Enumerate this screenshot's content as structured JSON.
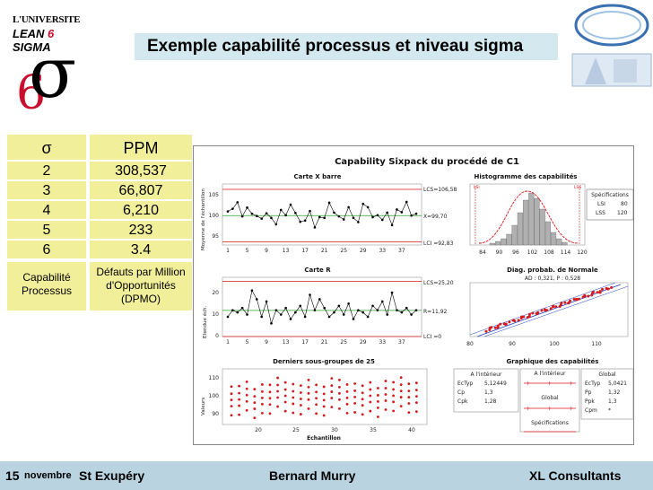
{
  "header": {
    "title": "Exemple capabilité processus et niveau sigma",
    "logo_line1": "L'UNIVERSITE",
    "logo_lean": "LEAN",
    "logo_six": "6",
    "logo_sigma": "SIGMA",
    "logo_big_six": "6",
    "logo_big_sigma": "σ"
  },
  "sigma_table": {
    "head": {
      "sigma": "σ",
      "ppm": "PPM"
    },
    "rows": [
      {
        "sigma": "2",
        "ppm": "308,537"
      },
      {
        "sigma": "3",
        "ppm": "66,807"
      },
      {
        "sigma": "4",
        "ppm": "6,210"
      },
      {
        "sigma": "5",
        "ppm": "233"
      },
      {
        "sigma": "6",
        "ppm": "3.4"
      }
    ],
    "foot": {
      "left": "Capabilité Processus",
      "right": "Défauts par Million d'Opportunités (DPMO)"
    }
  },
  "sixpack": {
    "title": "Capability Sixpack du procédé de C1",
    "xbar": {
      "title": "Carte X barre",
      "ylabel": "Moyenne de l'échantillon",
      "ucl_label": "LCS=106,58",
      "center_label": "X=99,70",
      "lcl_label": "LCI =92,83",
      "yticks": [
        "105",
        "100",
        "95"
      ],
      "xticks": [
        "1",
        "5",
        "9",
        "13",
        "17",
        "21",
        "25",
        "29",
        "33",
        "37"
      ]
    },
    "rchart": {
      "title": "Carte R",
      "ylabel": "Etendue éch.",
      "ucl_label": "LCS=25,20",
      "center_label": "R=11,92",
      "lcl_label": "LCI =0",
      "yticks": [
        "20",
        "10",
        "0"
      ],
      "xticks": [
        "1",
        "5",
        "9",
        "13",
        "17",
        "21",
        "25",
        "29",
        "33",
        "37"
      ]
    },
    "last25": {
      "title": "Derniers sous-groupes de 25",
      "ylabel": "Valeurs",
      "xlabel": "Echantillon",
      "yticks": [
        "110",
        "100",
        "90"
      ],
      "xticks": [
        "20",
        "25",
        "30",
        "35",
        "40"
      ]
    },
    "histogram": {
      "title": "Histogramme des capabilités",
      "lsl": "LSI",
      "usl": "LSS",
      "xticks": [
        "84",
        "90",
        "96",
        "102",
        "108",
        "114",
        "120"
      ],
      "spec_title": "Spécifications",
      "spec_lsi": "LSI",
      "spec_lsi_val": "80",
      "spec_lss": "LSS",
      "spec_lss_val": "120"
    },
    "probplot": {
      "title": "Diag. probab. de Normale",
      "stats": "AD : 0,321, P : 0,528",
      "xticks": [
        "80",
        "90",
        "100",
        "110"
      ]
    },
    "capplot": {
      "title": "Graphique des capabilités",
      "within_title": "A l'intérieur",
      "within": [
        {
          "k": "EcTyp",
          "v": "5,12449"
        },
        {
          "k": "Cp",
          "v": "1,3"
        },
        {
          "k": "Cpk",
          "v": "1,28"
        }
      ],
      "overall_title": "Global",
      "overall": [
        {
          "k": "EcTyp",
          "v": "5,0421"
        },
        {
          "k": "Pp",
          "v": "1,32"
        },
        {
          "k": "Ppk",
          "v": "1,3"
        },
        {
          "k": "Cpm",
          "v": "*"
        }
      ],
      "bar1": "A l'intérieur",
      "bar2": "Global",
      "bar3": "Spécifications"
    }
  },
  "footer": {
    "date_day": "15",
    "date_month": "novembre",
    "place": "St Exupéry",
    "author": "Bernard Murry",
    "company": "XL Consultants"
  },
  "colors": {
    "title_bg": "#d3e9ef",
    "table_bg": "#f2ef9b",
    "footer_bg": "#b9d4e0",
    "red": "#d7191c",
    "green": "#2ca02c"
  },
  "chart_data": [
    {
      "type": "line",
      "title": "Carte X barre",
      "x": [
        1,
        2,
        3,
        4,
        5,
        6,
        7,
        8,
        9,
        10,
        11,
        12,
        13,
        14,
        15,
        16,
        17,
        18,
        19,
        20,
        21,
        22,
        23,
        24,
        25,
        26,
        27,
        28,
        29,
        30,
        31,
        32,
        33,
        34,
        35,
        36,
        37,
        38,
        39,
        40
      ],
      "series": [
        {
          "values": [
            100.8,
            101.5,
            103.2,
            99.5,
            101.8,
            100.2,
            99.6,
            98.9,
            100.3,
            99.1,
            97.4,
            101.2,
            99.8,
            102.6,
            100.4,
            98.1,
            98.4,
            100.9,
            96.6,
            99.3,
            99.1,
            103.1,
            100.5,
            99.5,
            98.7,
            101.9,
            99.1,
            98.0,
            102.8,
            101.9,
            99.3,
            99.8,
            98.6,
            100.5,
            97.2,
            101.3,
            100.6,
            103.3,
            99.7,
            100.2
          ]
        }
      ],
      "ucl": 106.58,
      "center": 99.7,
      "lcl": 92.83,
      "ylim": [
        92,
        108
      ]
    },
    {
      "type": "line",
      "title": "Carte R",
      "x": [
        1,
        2,
        3,
        4,
        5,
        6,
        7,
        8,
        9,
        10,
        11,
        12,
        13,
        14,
        15,
        16,
        17,
        18,
        19,
        20,
        21,
        22,
        23,
        24,
        25,
        26,
        27,
        28,
        29,
        30,
        31,
        32,
        33,
        34,
        35,
        36,
        37,
        38,
        39,
        40
      ],
      "series": [
        {
          "values": [
            9,
            12,
            11,
            13,
            10,
            21,
            17,
            9,
            16,
            6,
            12,
            10,
            13,
            8,
            11,
            14,
            9,
            19,
            12,
            17,
            13,
            9,
            11,
            14,
            10,
            15,
            8,
            12,
            11,
            9,
            14,
            12,
            16,
            10,
            20,
            12,
            11,
            13,
            10,
            12
          ]
        }
      ],
      "ucl": 25.2,
      "center": 11.92,
      "lcl": 0,
      "ylim": [
        0,
        27
      ]
    }
  ]
}
